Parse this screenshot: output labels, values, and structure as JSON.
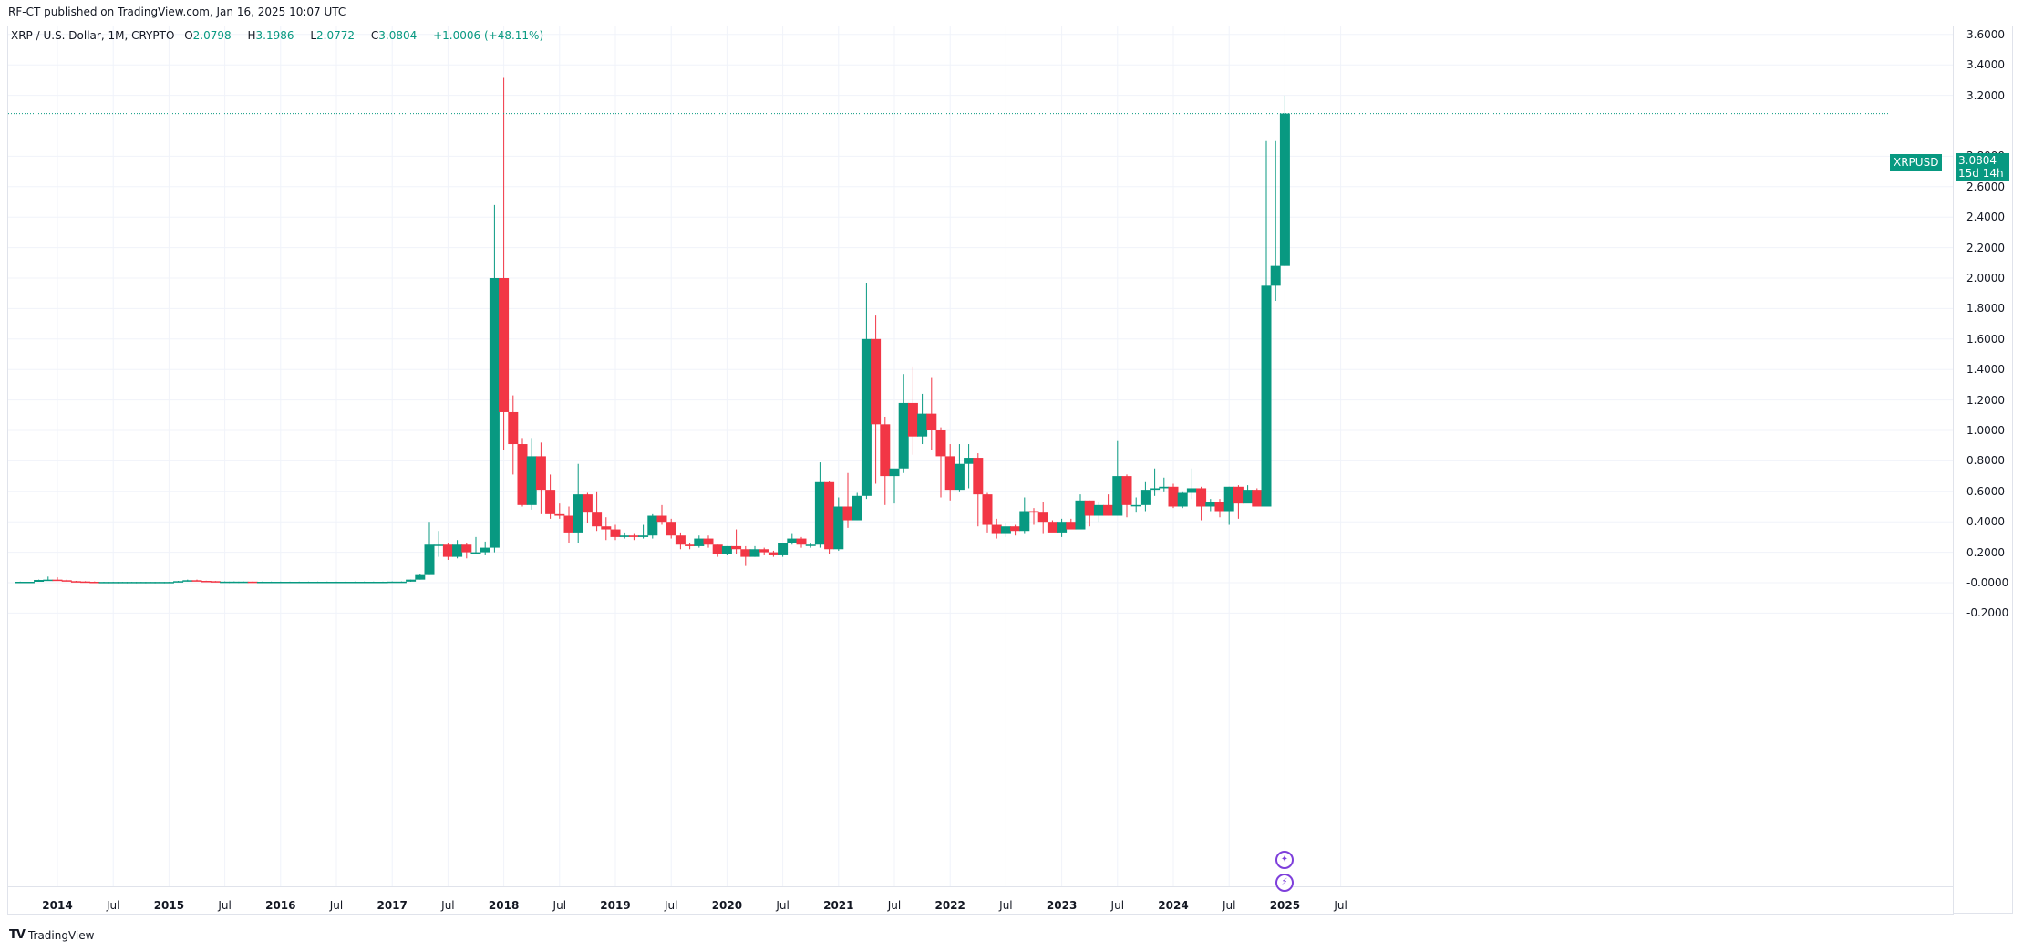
{
  "header": {
    "publisher_line": "RF-CT published on TradingView.com, Jan 16, 2025 10:07 UTC"
  },
  "legend": {
    "symbol": "XRP / U.S. Dollar, 1M, CRYPTO",
    "open_label": "O",
    "open": "2.0798",
    "high_label": "H",
    "high": "3.1986",
    "low_label": "L",
    "low": "2.0772",
    "close_label": "C",
    "close": "3.0804",
    "change": "+1.0006 (+48.11%)"
  },
  "last_price": {
    "ticker": "XRPUSD",
    "value": "3.0804",
    "countdown": "15d 14h"
  },
  "brand": {
    "logo_text": "TradingView"
  },
  "colors": {
    "up": "#089981",
    "down": "#f23645",
    "grid": "#f0f3fa",
    "event": "#7e3fdb"
  },
  "chart_data": {
    "type": "candlestick",
    "title": "XRP / U.S. Dollar, 1M, CRYPTO",
    "xlabel": "",
    "ylabel": "",
    "ylim": [
      -0.3,
      3.7
    ],
    "grid": true,
    "legend_position": "top-left",
    "y_ticks": [
      "3.6000",
      "3.4000",
      "3.2000",
      "2.8000",
      "2.6000",
      "2.4000",
      "2.2000",
      "2.0000",
      "1.8000",
      "1.6000",
      "1.4000",
      "1.2000",
      "1.0000",
      "0.8000",
      "0.6000",
      "0.4000",
      "0.2000",
      "-0.0000",
      "-0.2000"
    ],
    "x_ticks": [
      "2014",
      "Jul",
      "2015",
      "Jul",
      "2016",
      "Jul",
      "2017",
      "Jul",
      "2018",
      "Jul",
      "2019",
      "Jul",
      "2020",
      "Jul",
      "2021",
      "Jul",
      "2022",
      "Jul",
      "2023",
      "Jul",
      "2024",
      "Jul",
      "2025",
      "Jul"
    ],
    "start": "2013-09",
    "candles": [
      [
        0.006,
        0.007,
        0.005,
        0.006
      ],
      [
        0.006,
        0.006,
        0.005,
        0.006
      ],
      [
        0.006,
        0.02,
        0.006,
        0.018
      ],
      [
        0.018,
        0.04,
        0.015,
        0.02
      ],
      [
        0.02,
        0.035,
        0.014,
        0.016
      ],
      [
        0.016,
        0.02,
        0.008,
        0.01
      ],
      [
        0.01,
        0.012,
        0.007,
        0.008
      ],
      [
        0.008,
        0.01,
        0.004,
        0.006
      ],
      [
        0.006,
        0.008,
        0.004,
        0.005
      ],
      [
        0.005,
        0.006,
        0.004,
        0.005
      ],
      [
        0.005,
        0.006,
        0.004,
        0.005
      ],
      [
        0.005,
        0.006,
        0.004,
        0.005
      ],
      [
        0.005,
        0.006,
        0.004,
        0.005
      ],
      [
        0.005,
        0.006,
        0.004,
        0.005
      ],
      [
        0.005,
        0.006,
        0.004,
        0.005
      ],
      [
        0.005,
        0.006,
        0.004,
        0.005
      ],
      [
        0.005,
        0.006,
        0.004,
        0.005
      ],
      [
        0.005,
        0.012,
        0.005,
        0.01
      ],
      [
        0.01,
        0.02,
        0.008,
        0.016
      ],
      [
        0.016,
        0.02,
        0.01,
        0.012
      ],
      [
        0.012,
        0.013,
        0.009,
        0.01
      ],
      [
        0.01,
        0.011,
        0.005,
        0.006
      ],
      [
        0.006,
        0.008,
        0.005,
        0.007
      ],
      [
        0.007,
        0.008,
        0.006,
        0.007
      ],
      [
        0.007,
        0.008,
        0.006,
        0.007
      ],
      [
        0.007,
        0.008,
        0.006,
        0.006
      ],
      [
        0.006,
        0.007,
        0.005,
        0.006
      ],
      [
        0.006,
        0.007,
        0.005,
        0.006
      ],
      [
        0.006,
        0.007,
        0.005,
        0.006
      ],
      [
        0.006,
        0.007,
        0.005,
        0.006
      ],
      [
        0.006,
        0.007,
        0.005,
        0.006
      ],
      [
        0.006,
        0.007,
        0.005,
        0.006
      ],
      [
        0.006,
        0.007,
        0.005,
        0.006
      ],
      [
        0.006,
        0.007,
        0.005,
        0.006
      ],
      [
        0.006,
        0.007,
        0.005,
        0.006
      ],
      [
        0.006,
        0.007,
        0.005,
        0.006
      ],
      [
        0.006,
        0.007,
        0.005,
        0.006
      ],
      [
        0.006,
        0.007,
        0.005,
        0.006
      ],
      [
        0.006,
        0.007,
        0.005,
        0.006
      ],
      [
        0.006,
        0.007,
        0.005,
        0.006
      ],
      [
        0.006,
        0.007,
        0.005,
        0.006
      ],
      [
        0.006,
        0.007,
        0.005,
        0.006
      ],
      [
        0.006,
        0.007,
        0.005,
        0.006
      ],
      [
        0.006,
        0.007,
        0.005,
        0.006
      ],
      [
        0.006,
        0.007,
        0.005,
        0.006
      ],
      [
        0.006,
        0.007,
        0.005,
        0.006
      ],
      [
        0.006,
        0.007,
        0.005,
        0.006
      ],
      [
        0.006,
        0.007,
        0.005,
        0.006
      ],
      [
        0.006,
        0.007,
        0.005,
        0.006
      ],
      [
        0.006,
        0.007,
        0.005,
        0.006
      ],
      [
        0.006,
        0.007,
        0.005,
        0.006
      ],
      [
        0.006,
        0.007,
        0.005,
        0.006
      ],
      [
        0.006,
        0.007,
        0.005,
        0.006
      ],
      [
        0.006,
        0.007,
        0.005,
        0.006
      ],
      [
        0.006,
        0.007,
        0.005,
        0.006
      ],
      [
        0.006,
        0.007,
        0.005,
        0.006
      ],
      [
        0.006,
        0.007,
        0.005,
        0.006
      ],
      [
        0.006,
        0.007,
        0.005,
        0.006
      ],
      [
        0.006,
        0.007,
        0.005,
        0.006
      ],
      [
        0.006,
        0.007,
        0.005,
        0.006
      ],
      [
        0.006,
        0.008,
        0.005,
        0.007
      ],
      [
        0.007,
        0.009,
        0.006,
        0.008
      ],
      [
        0.008,
        0.009,
        0.006,
        0.007
      ],
      [
        0.007,
        0.008,
        0.005,
        0.006
      ],
      [
        0.006,
        0.007,
        0.005,
        0.006
      ],
      [
        0.006,
        0.007,
        0.005,
        0.006
      ],
      [
        0.006,
        0.007,
        0.005,
        0.006
      ],
      [
        0.006,
        0.007,
        0.005,
        0.006
      ],
      [
        0.006,
        0.007,
        0.005,
        0.006
      ],
      [
        0.006,
        0.007,
        0.005,
        0.006
      ],
      [
        0.006,
        0.007,
        0.005,
        0.006
      ],
      [
        0.006,
        0.007,
        0.005,
        0.006
      ],
      [
        0.006,
        0.007,
        0.005,
        0.006
      ],
      [
        0.006,
        0.007,
        0.005,
        0.006
      ],
      [
        0.006,
        0.007,
        0.005,
        0.006
      ],
      [
        0.006,
        0.007,
        0.005,
        0.006
      ],
      [
        0.006,
        0.007,
        0.005,
        0.006
      ],
      [
        0.006,
        0.007,
        0.005,
        0.006
      ],
      [
        0.006,
        0.007,
        0.005,
        0.006
      ],
      [
        0.006,
        0.007,
        0.005,
        0.006
      ],
      [
        0.006,
        0.007,
        0.005,
        0.006
      ],
      [
        0.006,
        0.007,
        0.005,
        0.006
      ],
      [
        0.006,
        0.007,
        0.005,
        0.006
      ],
      [
        0.006,
        0.007,
        0.005,
        0.006
      ],
      [
        0.006,
        0.007,
        0.005,
        0.006
      ],
      [
        0.006,
        0.007,
        0.005,
        0.006
      ],
      [
        0.006,
        0.007,
        0.005,
        0.006
      ],
      [
        0.006,
        0.007,
        0.005,
        0.006
      ],
      [
        0.006,
        0.007,
        0.005,
        0.006
      ],
      [
        0.006,
        0.007,
        0.005,
        0.006
      ],
      [
        0.006,
        0.007,
        0.005,
        0.006
      ],
      [
        0.006,
        0.007,
        0.005,
        0.006
      ],
      [
        0.006,
        0.007,
        0.005,
        0.006
      ],
      [
        0.006,
        0.007,
        0.005,
        0.006
      ],
      [
        0.006,
        0.007,
        0.005,
        0.006
      ],
      [
        0.006,
        0.007,
        0.005,
        0.006
      ],
      [
        0.006,
        0.007,
        0.005,
        0.006
      ],
      [
        0.006,
        0.007,
        0.005,
        0.006
      ],
      [
        0.006,
        0.007,
        0.005,
        0.006
      ],
      [
        0.006,
        0.007,
        0.005,
        0.006
      ],
      [
        0.006,
        0.007,
        0.005,
        0.006
      ],
      [
        0.006,
        0.007,
        0.005,
        0.006
      ],
      [
        0.006,
        0.007,
        0.005,
        0.006
      ],
      [
        0.006,
        0.007,
        0.005,
        0.006
      ]
    ],
    "candles_2017_onward_start": "2017-01",
    "candles_2017_onward": [
      [
        0.006,
        0.008,
        0.005,
        0.007
      ],
      [
        0.007,
        0.008,
        0.006,
        0.007
      ],
      [
        0.007,
        0.02,
        0.006,
        0.02
      ],
      [
        0.02,
        0.06,
        0.02,
        0.05
      ],
      [
        0.05,
        0.4,
        0.05,
        0.25
      ],
      [
        0.25,
        0.34,
        0.17,
        0.25
      ],
      [
        0.25,
        0.26,
        0.15,
        0.17
      ],
      [
        0.17,
        0.28,
        0.16,
        0.25
      ],
      [
        0.25,
        0.26,
        0.16,
        0.2
      ],
      [
        0.2,
        0.3,
        0.19,
        0.2
      ],
      [
        0.2,
        0.27,
        0.18,
        0.23
      ],
      [
        0.23,
        2.48,
        0.2,
        2.0
      ],
      [
        2.0,
        3.32,
        0.87,
        1.12
      ],
      [
        1.12,
        1.23,
        0.71,
        0.91
      ],
      [
        0.91,
        0.95,
        0.5,
        0.51
      ],
      [
        0.51,
        0.95,
        0.48,
        0.83
      ],
      [
        0.83,
        0.92,
        0.45,
        0.61
      ],
      [
        0.61,
        0.71,
        0.42,
        0.45
      ],
      [
        0.45,
        0.52,
        0.42,
        0.44
      ],
      [
        0.44,
        0.5,
        0.26,
        0.33
      ],
      [
        0.33,
        0.78,
        0.26,
        0.58
      ],
      [
        0.58,
        0.59,
        0.39,
        0.46
      ],
      [
        0.46,
        0.6,
        0.34,
        0.37
      ],
      [
        0.37,
        0.43,
        0.28,
        0.35
      ],
      [
        0.35,
        0.38,
        0.28,
        0.3
      ],
      [
        0.3,
        0.33,
        0.29,
        0.31
      ],
      [
        0.31,
        0.32,
        0.28,
        0.3
      ],
      [
        0.3,
        0.38,
        0.29,
        0.31
      ],
      [
        0.31,
        0.45,
        0.29,
        0.44
      ],
      [
        0.44,
        0.51,
        0.38,
        0.4
      ],
      [
        0.4,
        0.42,
        0.29,
        0.31
      ],
      [
        0.31,
        0.33,
        0.22,
        0.25
      ],
      [
        0.25,
        0.26,
        0.22,
        0.24
      ],
      [
        0.24,
        0.31,
        0.23,
        0.29
      ],
      [
        0.29,
        0.31,
        0.23,
        0.25
      ],
      [
        0.25,
        0.25,
        0.17,
        0.19
      ],
      [
        0.19,
        0.24,
        0.18,
        0.24
      ],
      [
        0.24,
        0.35,
        0.19,
        0.22
      ],
      [
        0.22,
        0.24,
        0.11,
        0.17
      ],
      [
        0.17,
        0.24,
        0.17,
        0.22
      ],
      [
        0.22,
        0.23,
        0.18,
        0.2
      ],
      [
        0.2,
        0.21,
        0.17,
        0.18
      ],
      [
        0.18,
        0.26,
        0.17,
        0.26
      ],
      [
        0.26,
        0.32,
        0.25,
        0.29
      ],
      [
        0.29,
        0.3,
        0.23,
        0.25
      ],
      [
        0.25,
        0.26,
        0.23,
        0.25
      ],
      [
        0.25,
        0.79,
        0.23,
        0.66
      ],
      [
        0.66,
        0.67,
        0.19,
        0.22
      ],
      [
        0.22,
        0.56,
        0.21,
        0.5
      ],
      [
        0.5,
        0.72,
        0.36,
        0.41
      ],
      [
        0.41,
        0.59,
        0.41,
        0.57
      ],
      [
        0.57,
        1.97,
        0.55,
        1.6
      ],
      [
        1.6,
        1.76,
        0.65,
        1.04
      ],
      [
        1.04,
        1.09,
        0.51,
        0.7
      ],
      [
        0.7,
        0.73,
        0.52,
        0.75
      ],
      [
        0.75,
        1.37,
        0.72,
        1.18
      ],
      [
        1.18,
        1.42,
        0.84,
        0.96
      ],
      [
        0.96,
        1.24,
        0.91,
        1.11
      ],
      [
        1.11,
        1.35,
        0.87,
        1.0
      ],
      [
        1.0,
        1.02,
        0.56,
        0.83
      ],
      [
        0.83,
        0.91,
        0.54,
        0.61
      ],
      [
        0.61,
        0.91,
        0.6,
        0.78
      ],
      [
        0.78,
        0.91,
        0.62,
        0.82
      ],
      [
        0.82,
        0.85,
        0.37,
        0.58
      ],
      [
        0.58,
        0.59,
        0.33,
        0.38
      ],
      [
        0.38,
        0.42,
        0.29,
        0.32
      ],
      [
        0.32,
        0.39,
        0.3,
        0.37
      ],
      [
        0.37,
        0.38,
        0.31,
        0.34
      ],
      [
        0.34,
        0.56,
        0.32,
        0.47
      ],
      [
        0.47,
        0.49,
        0.38,
        0.46
      ],
      [
        0.46,
        0.53,
        0.32,
        0.4
      ],
      [
        0.4,
        0.41,
        0.34,
        0.33
      ],
      [
        0.33,
        0.42,
        0.3,
        0.4
      ],
      [
        0.4,
        0.42,
        0.36,
        0.35
      ],
      [
        0.35,
        0.58,
        0.35,
        0.54
      ],
      [
        0.54,
        0.54,
        0.37,
        0.44
      ],
      [
        0.44,
        0.53,
        0.4,
        0.51
      ],
      [
        0.51,
        0.58,
        0.44,
        0.44
      ],
      [
        0.44,
        0.93,
        0.44,
        0.7
      ],
      [
        0.7,
        0.71,
        0.43,
        0.51
      ],
      [
        0.51,
        0.56,
        0.46,
        0.51
      ],
      [
        0.51,
        0.66,
        0.47,
        0.61
      ],
      [
        0.61,
        0.75,
        0.57,
        0.62
      ],
      [
        0.62,
        0.69,
        0.6,
        0.63
      ],
      [
        0.63,
        0.65,
        0.49,
        0.5
      ],
      [
        0.5,
        0.6,
        0.49,
        0.59
      ],
      [
        0.59,
        0.75,
        0.55,
        0.62
      ],
      [
        0.62,
        0.63,
        0.41,
        0.5
      ],
      [
        0.5,
        0.55,
        0.47,
        0.53
      ],
      [
        0.53,
        0.55,
        0.43,
        0.47
      ],
      [
        0.47,
        0.63,
        0.38,
        0.63
      ],
      [
        0.63,
        0.64,
        0.42,
        0.52
      ],
      [
        0.52,
        0.64,
        0.54,
        0.61
      ],
      [
        0.61,
        0.62,
        0.5,
        0.5
      ],
      [
        0.5,
        2.9,
        0.5,
        1.95
      ],
      [
        1.95,
        2.9,
        1.85,
        2.08
      ],
      [
        2.0798,
        3.1986,
        2.0772,
        3.0804
      ]
    ]
  },
  "events": [
    {
      "name": "ideas-event",
      "glyph": "✦"
    },
    {
      "name": "news-event",
      "glyph": "⚡"
    }
  ]
}
